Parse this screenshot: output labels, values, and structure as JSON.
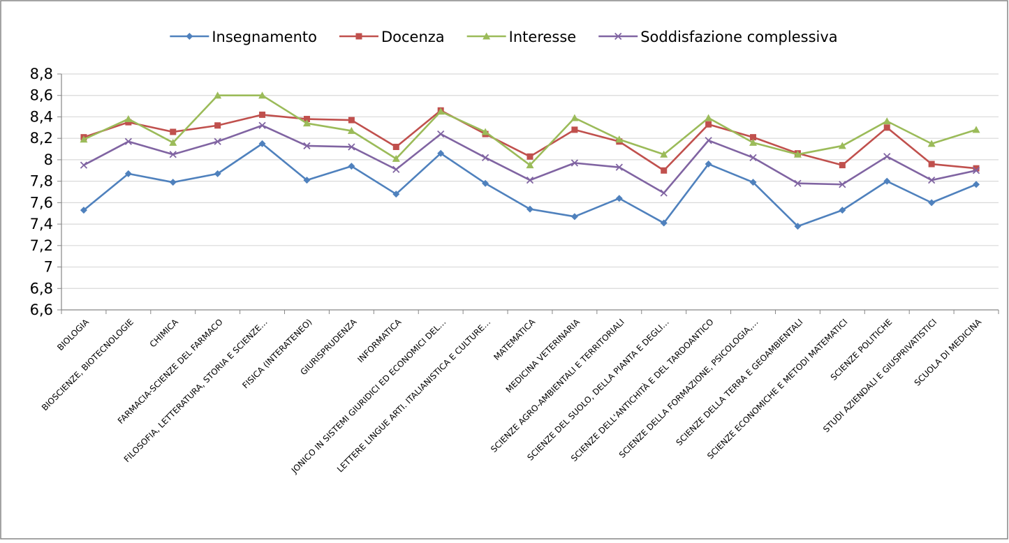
{
  "chart_data": {
    "type": "line",
    "title": "",
    "xlabel": "",
    "ylabel": "",
    "ylim": [
      6.6,
      8.8
    ],
    "ytick_step": 0.2,
    "yticks": [
      "6,6",
      "6,8",
      "7",
      "7,2",
      "7,4",
      "7,6",
      "7,8",
      "8",
      "8,2",
      "8,4",
      "8,6",
      "8,8"
    ],
    "grid": true,
    "legend": "top",
    "categories": [
      "BIOLOGIA",
      "BIOSCIENZE, BIOTECNOLOGIE",
      "CHIMICA",
      "FARMACIA-SCIENZE DEL FARMACO",
      "FILOSOFIA, LETTERATURA, STORIA E SCIENZE…",
      "FISICA (INTERATENEO)",
      "GIURISPRUDENZA",
      "INFORMATICA",
      "JONICO IN SISTEMI GIURIDICI ED ECONOMICI DEL…",
      "LETTERE LINGUE ARTI. ITALIANISTICA E CULTURE…",
      "MATEMATICA",
      "MEDICINA VETERINARIA",
      "SCIENZE AGRO-AMBIENTALI E TERRITORIALI",
      "SCIENZE DEL SUOLO, DELLA PIANTA E DEGLI…",
      "SCIENZE DELL'ANTICHITÀ E DEL TARDOANTICO",
      "SCIENZE DELLA FORMAZIONE, PSICOLOGIA,…",
      "SCIENZE DELLA TERRA E GEOAMBIENTALI",
      "SCIENZE ECONOMICHE E METODI MATEMATICI",
      "SCIENZE POLITICHE",
      "STUDI AZIENDALI E GIUSPRIVATISTICI",
      "SCUOLA DI MEDICINA"
    ],
    "series": [
      {
        "name": "Insegnamento",
        "color": "#4F81BD",
        "marker": "diamond",
        "values": [
          7.53,
          7.87,
          7.79,
          7.87,
          8.15,
          7.81,
          7.94,
          7.68,
          8.06,
          7.78,
          7.54,
          7.47,
          7.64,
          7.41,
          7.96,
          7.79,
          7.38,
          7.53,
          7.8,
          7.6,
          7.77
        ]
      },
      {
        "name": "Docenza",
        "color": "#C0504D",
        "marker": "square",
        "values": [
          8.21,
          8.35,
          8.26,
          8.32,
          8.42,
          8.38,
          8.37,
          8.12,
          8.46,
          8.24,
          8.03,
          8.28,
          8.17,
          7.9,
          8.33,
          8.21,
          8.06,
          7.95,
          8.3,
          7.96,
          7.92
        ]
      },
      {
        "name": "Interesse",
        "color": "#9BBB59",
        "marker": "triangle",
        "values": [
          8.19,
          8.38,
          8.16,
          8.6,
          8.6,
          8.34,
          8.27,
          8.01,
          8.45,
          8.26,
          7.95,
          8.39,
          8.19,
          8.05,
          8.39,
          8.16,
          8.05,
          8.13,
          8.36,
          8.15,
          8.28
        ]
      },
      {
        "name": "Soddisfazione complessiva",
        "color": "#8064A2",
        "marker": "x",
        "values": [
          7.95,
          8.17,
          8.05,
          8.17,
          8.32,
          8.13,
          8.12,
          7.91,
          8.24,
          8.02,
          7.81,
          7.97,
          7.93,
          7.69,
          8.18,
          8.02,
          7.78,
          7.77,
          8.03,
          7.81,
          7.9
        ]
      }
    ]
  }
}
